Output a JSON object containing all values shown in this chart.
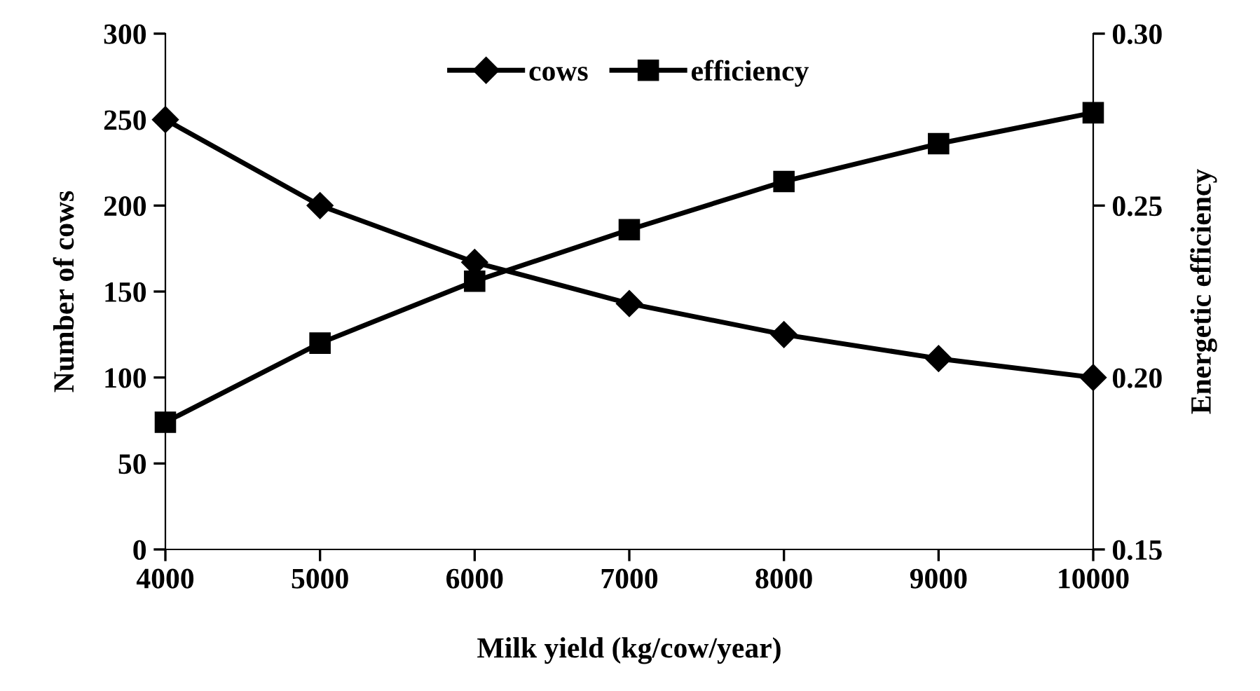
{
  "chart_data": {
    "type": "line",
    "xlabel": "Milk yield (kg/cow/year)",
    "ylabel": "Number of cows",
    "y2label": "Energetic efficiency",
    "x": [
      4000,
      5000,
      6000,
      7000,
      8000,
      9000,
      10000
    ],
    "xlim": [
      4000,
      10000
    ],
    "xticks": [
      4000,
      5000,
      6000,
      7000,
      8000,
      9000,
      10000
    ],
    "ylim": [
      0,
      300
    ],
    "yticks": [
      0,
      50,
      100,
      150,
      200,
      250,
      300
    ],
    "y2lim": [
      0.15,
      0.3
    ],
    "y2ticks": [
      {
        "value": 0.15,
        "label": "0.15"
      },
      {
        "value": 0.2,
        "label": "0.20"
      },
      {
        "value": 0.25,
        "label": "0.25"
      },
      {
        "value": 0.3,
        "label": "0.30"
      }
    ],
    "grid": false,
    "legend": "top",
    "line_style": "solid",
    "series": [
      {
        "name": "cows",
        "color": "#000000",
        "marker": "diamond",
        "values": [
          250,
          200,
          167,
          143,
          125,
          111,
          100
        ]
      },
      {
        "name": "efficiency",
        "color": "#000000",
        "marker": "square",
        "axis": "y2",
        "values": [
          0.187,
          0.21,
          0.228,
          0.243,
          0.257,
          0.268,
          0.277
        ]
      }
    ]
  }
}
